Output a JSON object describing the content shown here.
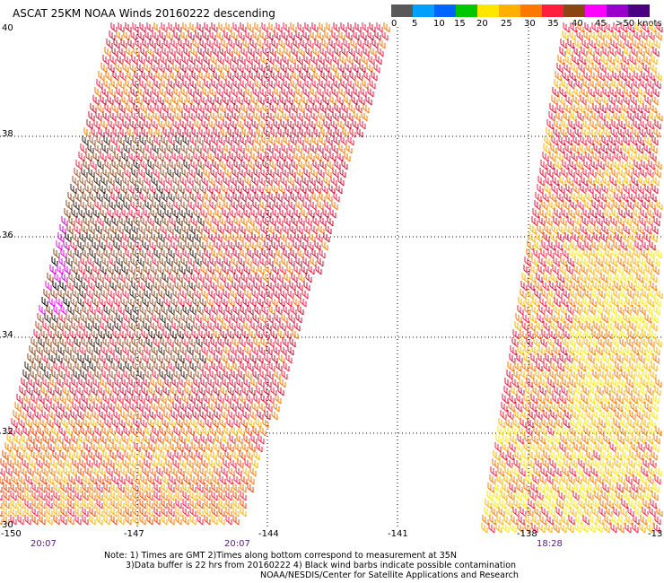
{
  "title": "ASCAT 25KM NOAA Winds 20160222 descending",
  "legend": {
    "colors": [
      "#595959",
      "#00a0ff",
      "#0064ff",
      "#00c800",
      "#ffe600",
      "#ffb000",
      "#ff7800",
      "#ff1e3c",
      "#8b4513",
      "#ff00ff",
      "#9900cc",
      "#4b0082"
    ],
    "labels": [
      "0",
      "5",
      "10",
      "15",
      "20",
      "25",
      "30",
      "35",
      "40",
      "45",
      ">50 knots"
    ]
  },
  "axes": {
    "lat_labels": [
      "40",
      "38",
      "36",
      "34",
      "32",
      "30"
    ],
    "lon_labels": [
      "-150",
      "-147",
      "-144",
      "-141",
      "-138",
      "-13"
    ]
  },
  "pass_times": [
    "20:07",
    "20:07",
    "18:28"
  ],
  "notes": [
    "Note: 1) Times are GMT 2)Times along bottom correspond to measurement at 35N",
    "3)Data buffer is 22 hrs from 20160222 4) Black wind barbs indicate possible contamination",
    "NOAA/NESDIS/Center for Satellite Applications and Research"
  ]
}
